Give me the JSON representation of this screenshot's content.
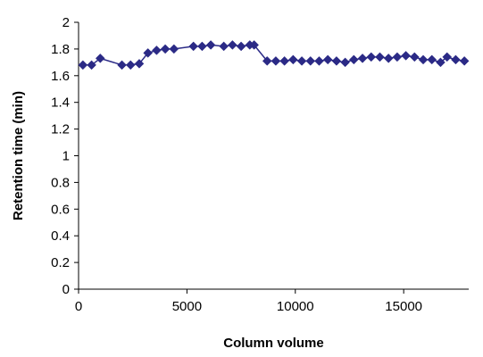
{
  "chart_data": {
    "type": "line",
    "title": "",
    "xlabel": "Column volume",
    "ylabel": "Retention time (min)",
    "xlim": [
      0,
      18000
    ],
    "ylim": [
      0,
      2
    ],
    "x_ticks": [
      0,
      5000,
      10000,
      15000
    ],
    "y_ticks": [
      0,
      0.2,
      0.4,
      0.6,
      0.8,
      1,
      1.2,
      1.4,
      1.6,
      1.8,
      2
    ],
    "grid": false,
    "legend": "none",
    "colors": {
      "series": "#2b2a86",
      "axis": "#000000"
    },
    "series": [
      {
        "marker": "diamond",
        "points": [
          [
            200,
            1.68
          ],
          [
            600,
            1.68
          ],
          [
            1000,
            1.73
          ],
          [
            2000,
            1.68
          ],
          [
            2400,
            1.68
          ],
          [
            2800,
            1.69
          ],
          [
            3200,
            1.77
          ],
          [
            3600,
            1.79
          ],
          [
            4000,
            1.8
          ],
          [
            4400,
            1.8
          ],
          [
            5300,
            1.82
          ],
          [
            5700,
            1.82
          ],
          [
            6100,
            1.83
          ],
          [
            6700,
            1.82
          ],
          [
            7100,
            1.83
          ],
          [
            7500,
            1.82
          ],
          [
            7900,
            1.83
          ],
          [
            8100,
            1.83
          ],
          [
            8700,
            1.71
          ],
          [
            9100,
            1.71
          ],
          [
            9500,
            1.71
          ],
          [
            9900,
            1.72
          ],
          [
            10300,
            1.71
          ],
          [
            10700,
            1.71
          ],
          [
            11100,
            1.71
          ],
          [
            11500,
            1.72
          ],
          [
            11900,
            1.71
          ],
          [
            12300,
            1.7
          ],
          [
            12700,
            1.72
          ],
          [
            13100,
            1.73
          ],
          [
            13500,
            1.74
          ],
          [
            13900,
            1.74
          ],
          [
            14300,
            1.73
          ],
          [
            14700,
            1.74
          ],
          [
            15100,
            1.75
          ],
          [
            15500,
            1.74
          ],
          [
            15900,
            1.72
          ],
          [
            16300,
            1.72
          ],
          [
            16700,
            1.7
          ],
          [
            17000,
            1.74
          ],
          [
            17400,
            1.72
          ],
          [
            17800,
            1.71
          ]
        ]
      }
    ]
  }
}
